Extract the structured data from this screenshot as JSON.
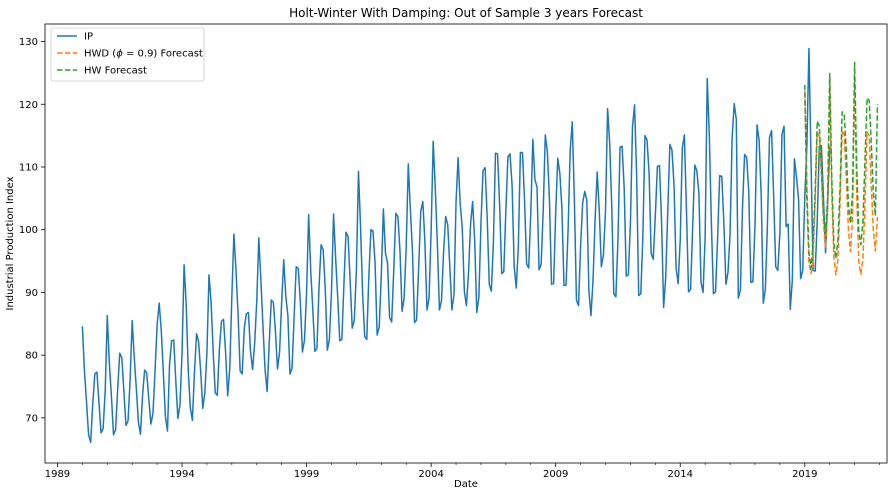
{
  "chart_data": {
    "type": "line",
    "title": "Holt-Winter With Damping: Out of Sample 3 years Forecast",
    "xlabel": "Date",
    "ylabel": "Industrial Production Index",
    "xlim": [
      1988.5,
      2022.3
    ],
    "ylim": [
      62.8,
      132.8
    ],
    "x_ticks": [
      1989,
      1994,
      1999,
      2004,
      2009,
      2014,
      2019
    ],
    "y_ticks": [
      70,
      80,
      90,
      100,
      110,
      120,
      130
    ],
    "grid": false,
    "legend_position": "top-left",
    "series": [
      {
        "name": "IP",
        "color": "#1f77b4",
        "dash": "solid",
        "frequency": "monthly",
        "start": 1990.0,
        "values": [
          84.6,
          77.5,
          72.5,
          67.3,
          66.1,
          72.2,
          77.0,
          77.3,
          72.4,
          67.6,
          68.3,
          74.3,
          86.3,
          78.7,
          73.4,
          67.3,
          68.1,
          74.5,
          80.3,
          79.6,
          74.2,
          68.8,
          69.5,
          76.1,
          85.5,
          79.6,
          74.6,
          69.3,
          67.4,
          73.6,
          77.6,
          77.2,
          73.0,
          69.0,
          70.7,
          77.4,
          84.8,
          88.3,
          84.0,
          77.2,
          70.2,
          67.9,
          78.6,
          82.3,
          82.4,
          76.0,
          69.9,
          72.0,
          80.2,
          94.4,
          88.2,
          77.6,
          71.6,
          69.6,
          77.3,
          83.4,
          82.1,
          77.4,
          71.5,
          74.1,
          80.4,
          92.8,
          88.5,
          80.6,
          74.0,
          73.6,
          80.9,
          85.4,
          85.7,
          80.4,
          73.5,
          77.9,
          89.3,
          99.3,
          93.5,
          86.6,
          77.5,
          77.0,
          84.3,
          86.6,
          86.8,
          80.6,
          77.7,
          81.9,
          88.6,
          98.7,
          91.9,
          84.6,
          77.7,
          74.2,
          81.8,
          88.8,
          88.4,
          83.8,
          77.8,
          80.5,
          88.4,
          95.2,
          89.4,
          86.3,
          77.0,
          77.9,
          86.0,
          94.1,
          93.8,
          88.5,
          80.5,
          82.4,
          90.0,
          102.4,
          93.5,
          87.3,
          80.6,
          81.1,
          90.8,
          97.6,
          96.8,
          90.6,
          80.8,
          82.5,
          90.1,
          102.5,
          95.5,
          89.2,
          82.3,
          82.5,
          91.4,
          99.6,
          98.9,
          91.8,
          84.3,
          85.6,
          93.5,
          109.3,
          100.5,
          89.8,
          83.0,
          82.5,
          92.6,
          100.0,
          99.8,
          94.7,
          83.2,
          84.5,
          92.8,
          103.3,
          96.3,
          94.7,
          86.0,
          85.3,
          93.6,
          102.6,
          102.1,
          96.6,
          87.0,
          89.1,
          97.3,
          110.5,
          103.3,
          96.6,
          85.2,
          85.6,
          94.0,
          102.9,
          104.5,
          98.1,
          87.2,
          89.1,
          99.8,
          114.1,
          106.6,
          97.8,
          87.2,
          88.7,
          96.4,
          102.1,
          100.8,
          94.1,
          87.2,
          89.6,
          104.4,
          111.5,
          104.2,
          100.3,
          90.2,
          87.9,
          93.0,
          100.9,
          104.5,
          98.1,
          86.8,
          89.2,
          101.0,
          109.4,
          109.9,
          102.0,
          91.3,
          90.2,
          98.0,
          112.2,
          112.1,
          103.9,
          93.0,
          93.3,
          103.1,
          111.6,
          112.1,
          107.1,
          94.2,
          90.7,
          97.2,
          112.3,
          112.3,
          104.7,
          94.5,
          93.9,
          102.6,
          114.4,
          108.0,
          106.8,
          93.6,
          94.5,
          103.1,
          115.1,
          112.4,
          104.8,
          91.3,
          91.4,
          102.6,
          111.4,
          109.0,
          103.4,
          91.1,
          91.2,
          100.2,
          112.7,
          117.2,
          104.9,
          88.8,
          87.9,
          97.4,
          104.3,
          106.1,
          104.7,
          90.3,
          86.3,
          92.0,
          101.8,
          109.2,
          103.0,
          94.1,
          96.0,
          103.0,
          119.3,
          113.9,
          103.8,
          89.8,
          89.3,
          98.4,
          113.2,
          113.3,
          106.6,
          92.6,
          92.8,
          101.0,
          116.4,
          119.9,
          108.6,
          89.5,
          89.8,
          99.0,
          115.0,
          114.3,
          109.0,
          96.2,
          95.3,
          102.3,
          110.1,
          110.2,
          101.3,
          87.6,
          92.4,
          103.0,
          113.6,
          112.7,
          107.2,
          93.9,
          91.4,
          98.4,
          113.0,
          115.1,
          103.1,
          90.1,
          90.5,
          100.6,
          110.3,
          109.4,
          105.8,
          91.6,
          90.0,
          98.9,
          124.1,
          115.2,
          101.0,
          89.8,
          90.1,
          98.6,
          108.6,
          108.5,
          101.2,
          91.3,
          93.2,
          99.3,
          114.7,
          120.1,
          117.6,
          89.1,
          90.4,
          103.6,
          112.0,
          111.5,
          106.1,
          91.6,
          91.7,
          100.6,
          116.7,
          114.2,
          105.5,
          88.3,
          90.5,
          100.9,
          114.7,
          115.8,
          105.3,
          94.1,
          93.5,
          99.5,
          115.2,
          116.5,
          100.5,
          100.9,
          87.3,
          92.0,
          111.3,
          108.4,
          104.8,
          92.2,
          93.5,
          105.2,
          113.4,
          128.9,
          111.1,
          93.5,
          93.4,
          101.5,
          113.3,
          113.4,
          105.0,
          96.3,
          104.1,
          113.3
        ]
      },
      {
        "name": "HWD ($\\phi=0.9$) Forecast",
        "color": "#ff7f0e",
        "dash": "dashed",
        "frequency": "monthly",
        "start": 2019.0,
        "values": [
          122.1,
          104.5,
          94.7,
          93.0,
          95.5,
          104.9,
          115.5,
          114.9,
          108.6,
          101.0,
          97.2,
          103.2,
          123.3,
          106.0,
          95.5,
          92.8,
          95.5,
          104.5,
          115.8,
          115.2,
          108.3,
          100.1,
          96.5,
          102.1,
          124.1,
          106.2,
          95.0,
          92.9,
          95.4,
          104.1,
          115.6,
          115.0,
          107.4,
          99.9,
          96.6,
          102.0
        ]
      },
      {
        "name": "HW Forecast",
        "color": "#2ca02c",
        "dash": "dashed",
        "frequency": "monthly",
        "start": 2019.0,
        "values": [
          123.1,
          106.2,
          96.3,
          93.8,
          97.9,
          106.1,
          117.3,
          116.5,
          110.1,
          102.5,
          99.4,
          105.1,
          124.9,
          108.2,
          97.8,
          95.4,
          98.6,
          106.8,
          118.8,
          118.3,
          112.5,
          104.0,
          101.0,
          105.8,
          126.7,
          110.2,
          99.8,
          97.6,
          101.2,
          111.2,
          121.0,
          120.6,
          114.0,
          106.0,
          102.2,
          120.0
        ]
      }
    ]
  }
}
